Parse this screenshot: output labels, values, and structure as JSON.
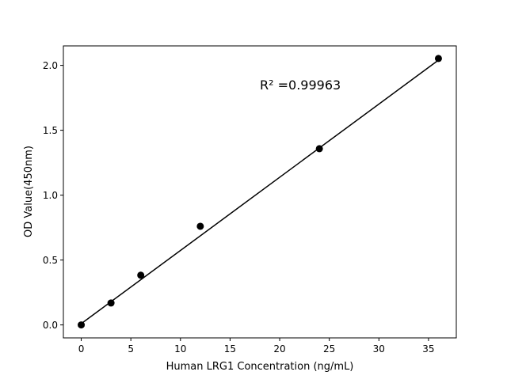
{
  "chart_data": {
    "type": "scatter",
    "title": "",
    "xlabel": "Human LRG1 Concentration (ng/mL)",
    "ylabel": "OD Value(450nm)",
    "xlim": [
      -1.8,
      37.8
    ],
    "ylim": [
      -0.1,
      2.15
    ],
    "xticks": [
      0,
      5,
      10,
      15,
      20,
      25,
      30,
      35
    ],
    "yticks": [
      0.0,
      0.5,
      1.0,
      1.5,
      2.0
    ],
    "xtick_labels": [
      "0",
      "5",
      "10",
      "15",
      "20",
      "25",
      "30",
      "35"
    ],
    "ytick_labels": [
      "0.0",
      "0.5",
      "1.0",
      "1.5",
      "2.0"
    ],
    "grid": false,
    "points": {
      "x": [
        0,
        3,
        6,
        12,
        24,
        36
      ],
      "y": [
        0.0,
        0.169,
        0.383,
        0.76,
        1.358,
        2.053
      ]
    },
    "fit_line": {
      "x": [
        0,
        36
      ],
      "y": [
        0.01,
        2.04
      ]
    },
    "annotation": "R² =0.99963",
    "annotation_position": {
      "x": 18,
      "y": 1.85
    },
    "marker_color": "#000000",
    "line_color": "#000000"
  }
}
